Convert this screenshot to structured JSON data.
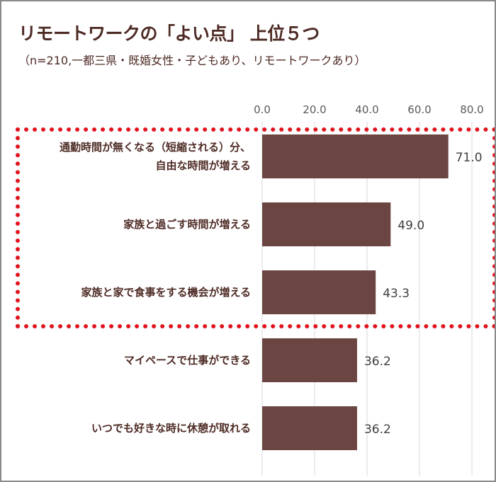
{
  "title": "リモートワークの「よい点」 上位５つ",
  "subtitle": "（n=210,一都三県・既婚女性・子どもあり、リモートワークあり）",
  "chart_data": {
    "type": "bar",
    "orientation": "horizontal",
    "categories": [
      "通勤時間が無くなる（短縮される）分、自由な時間が増える",
      "家族と過ごす時間が増える",
      "家族と家で食事をする機会が増える",
      "マイペースで仕事ができる",
      "いつでも好きな時に休憩が取れる"
    ],
    "category_lines": [
      [
        "通勤時間が無くなる（短縮される）分、",
        "自由な時間が増える"
      ],
      [
        "家族と過ごす時間が増える"
      ],
      [
        "家族と家で食事をする機会が増える"
      ],
      [
        "マイペースで仕事ができる"
      ],
      [
        "いつでも好きな時に休憩が取れる"
      ]
    ],
    "values": [
      71.0,
      49.0,
      43.3,
      36.2,
      36.2
    ],
    "value_labels": [
      "71.0",
      "49.0",
      "43.3",
      "36.2",
      "36.2"
    ],
    "xlim": [
      0,
      80
    ],
    "ticks": [
      "0.0",
      "20.0",
      "40.0",
      "60.0",
      "80.0"
    ],
    "axis_position": "top",
    "grid": true,
    "bar_color": "#6b4541",
    "highlight_color": "#e0141e",
    "highlighted_categories": [
      0,
      1,
      2
    ]
  }
}
